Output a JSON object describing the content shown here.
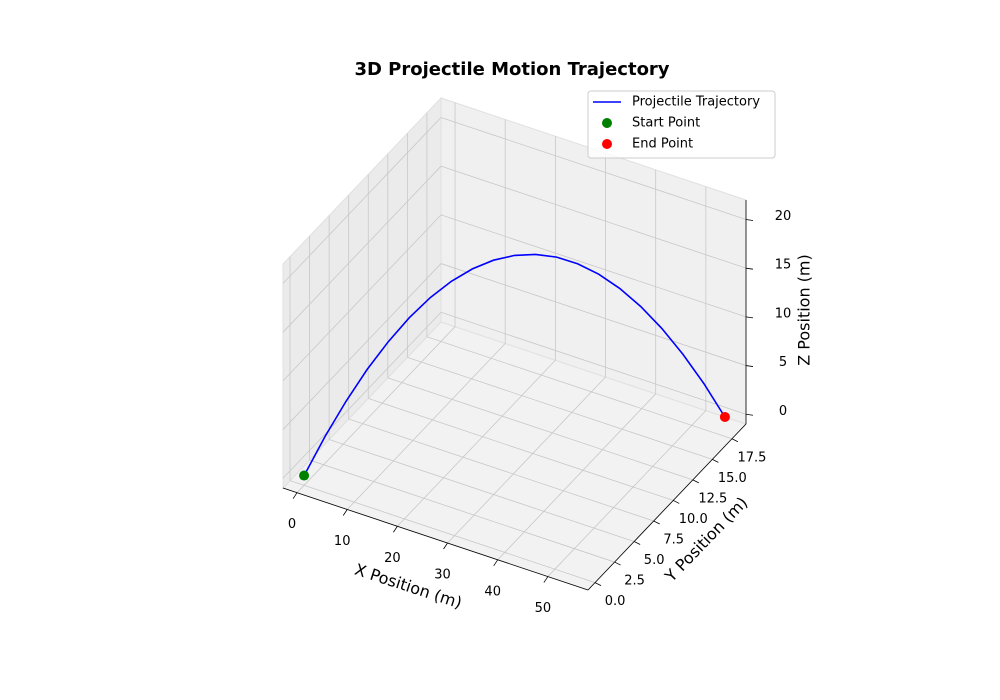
{
  "chart_data": {
    "type": "line3d",
    "title": "3D Projectile Motion Trajectory",
    "xlabel": "X Position (m)",
    "ylabel": "Y Position (m)",
    "zlabel": "Z Position (m)",
    "xlim": [
      -2.8,
      58
    ],
    "ylim": [
      -0.9,
      19.3
    ],
    "zlim": [
      -1,
      22
    ],
    "xticks": [
      0,
      10,
      20,
      30,
      40,
      50
    ],
    "yticks": [
      {
        "value": 0,
        "label": "0.0"
      },
      {
        "value": 2.5,
        "label": "2.5"
      },
      {
        "value": 5,
        "label": "5.0"
      },
      {
        "value": 7.5,
        "label": "7.5"
      },
      {
        "value": 10,
        "label": "10.0"
      },
      {
        "value": 12.5,
        "label": "12.5"
      },
      {
        "value": 15,
        "label": "15.0"
      },
      {
        "value": 17.5,
        "label": "17.5"
      }
    ],
    "zticks": [
      0,
      5,
      10,
      15,
      20
    ],
    "grid": true,
    "legend": "upper right",
    "series": [
      {
        "name": "Projectile Trajectory",
        "kind": "line",
        "color": "#0000ff",
        "x": [
          0,
          2.76,
          5.52,
          8.28,
          11.04,
          13.8,
          16.56,
          19.32,
          22.08,
          24.84,
          27.6,
          30.36,
          33.12,
          35.88,
          38.64,
          41.4,
          44.16,
          46.92,
          49.68,
          52.44,
          55.2
        ],
        "y": [
          0,
          0.92,
          1.84,
          2.76,
          3.68,
          4.6,
          5.52,
          6.44,
          7.36,
          8.28,
          9.2,
          10.12,
          11.04,
          11.96,
          12.88,
          13.8,
          14.72,
          15.64,
          16.56,
          17.48,
          18.4
        ],
        "z": [
          0,
          3.724,
          7.056,
          9.996,
          12.544,
          14.7,
          16.464,
          17.836,
          18.816,
          19.404,
          19.6,
          19.404,
          18.816,
          17.836,
          16.464,
          14.7,
          12.544,
          9.996,
          7.056,
          3.724,
          0
        ]
      },
      {
        "name": "Start Point",
        "kind": "point",
        "color": "#008000",
        "x": [
          0
        ],
        "y": [
          0
        ],
        "z": [
          0
        ]
      },
      {
        "name": "End Point",
        "kind": "point",
        "color": "#ff0000",
        "x": [
          55.2
        ],
        "y": [
          18.4
        ],
        "z": [
          0
        ]
      }
    ]
  }
}
